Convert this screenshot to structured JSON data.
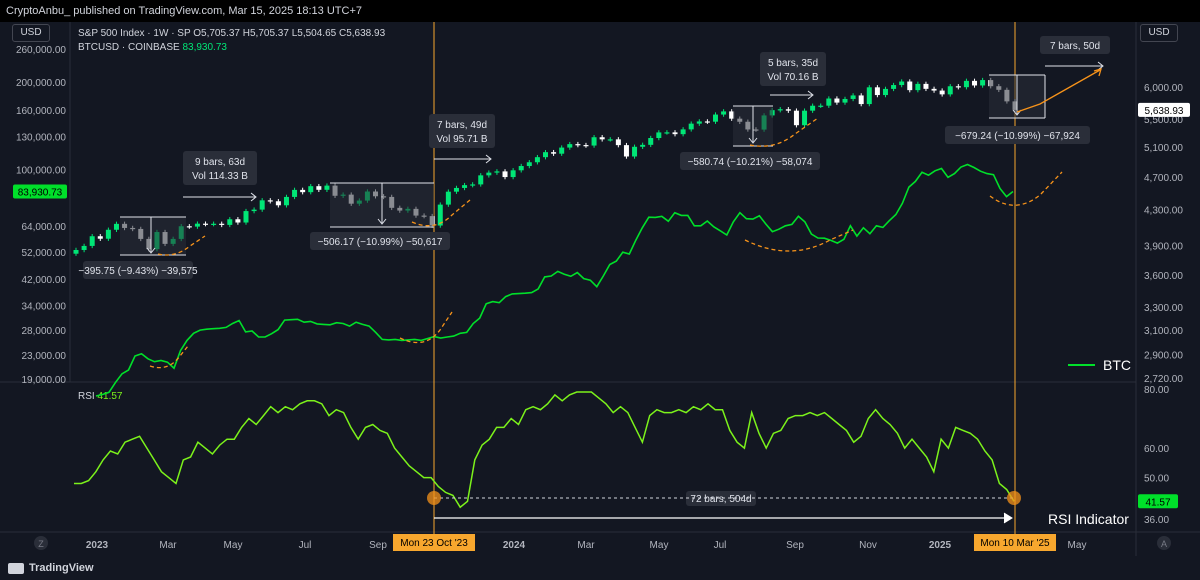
{
  "header": {
    "publish_line": "CryptoAnbu_ published on TradingView.com, Mar 15, 2025 18:13 UTC+7",
    "usd_left": "USD",
    "usd_right": "USD",
    "brand": "TradingView"
  },
  "legend": {
    "spx_name": "S&P 500 Index · 1W · SP",
    "spx_o_label": "O",
    "spx_o": "5,705.37",
    "spx_h_label": "H",
    "spx_h": "5,705.37",
    "spx_l_label": "L",
    "spx_l": "5,504.65",
    "spx_c_label": "C",
    "spx_c": "5,638.93",
    "btc_name": "BTCUSD · COINBASE",
    "btc_value": "83,930.73",
    "rsi_name": "RSI",
    "rsi_value": "41.57"
  },
  "labels": {
    "btc_line_legend": "BTC",
    "rsi_indicator": "RSI Indicator",
    "z_button": "Z",
    "a_button": "A"
  },
  "colors": {
    "background": "#131722",
    "btc_line": "#00e02a",
    "rsi_line": "#7cf21b",
    "up_candle": "#00e676",
    "down_candle": "#ffffff",
    "projection": "#f7931a",
    "marker_line": "#f7a72e",
    "tag_bg": "#f7a72e"
  },
  "chart_data": [
    {
      "type": "line",
      "title": "",
      "x_ticks": [
        "2023",
        "Mar",
        "May",
        "Jul",
        "Sep",
        "2024",
        "Mar",
        "May",
        "Jul",
        "Sep",
        "Nov",
        "2025",
        "May"
      ],
      "x_marker_labels": [
        "Mon 23 Oct '23",
        "Mon 10 Mar '25"
      ],
      "left_axis": {
        "label": "BTCUSD",
        "scale": "log",
        "ticks": [
          260000,
          200000,
          160000,
          130000,
          100000,
          64000,
          52000,
          42000,
          34000,
          28000,
          23000,
          19000
        ],
        "tick_labels": [
          "260,000.00",
          "200,000.00",
          "160,000.00",
          "130,000.00",
          "100,000.00",
          "64,000.00",
          "52,000.00",
          "42,000.00",
          "34,000.00",
          "28,000.00",
          "23,000.00",
          "19,000.00"
        ],
        "current_label": "83,930.73"
      },
      "right_axis": {
        "label": "S&P 500",
        "scale": "log",
        "ticks": [
          6000,
          5500,
          5100,
          4700,
          4300,
          3900,
          3600,
          3300,
          3100,
          2900,
          2720
        ],
        "tick_labels": [
          "6,000.00",
          "5,500.00",
          "5,100.00",
          "4,700.00",
          "4,300.00",
          "3,900.00",
          "3,600.00",
          "3,300.00",
          "3,100.00",
          "2,900.00",
          "2,720.00"
        ],
        "current_label": "5,638.93"
      },
      "series": [
        {
          "name": "BTC",
          "axis": "left",
          "values": [
            16600,
            16800,
            17100,
            18500,
            19800,
            20400,
            22800,
            23200,
            22300,
            21800,
            22000,
            21700,
            20700,
            23800,
            25800,
            27300,
            28000,
            28200,
            28300,
            28400,
            28600,
            29500,
            30200,
            27600,
            27800,
            26500,
            26500,
            27200,
            28100,
            30300,
            30400,
            30500,
            29800,
            30000,
            29400,
            29300,
            29200,
            29700,
            29500,
            28900,
            29800,
            29300,
            28900,
            27500,
            26000,
            25900,
            26000,
            25800,
            25900,
            26000,
            25800,
            26200,
            26600,
            26300,
            26500,
            26700,
            27300,
            27500,
            29500,
            30800,
            34500,
            35100,
            34800,
            36500,
            37300,
            37400,
            37500,
            37700,
            38800,
            42700,
            43000,
            44600,
            43600,
            42900,
            44200,
            42100,
            41600,
            39500,
            43000,
            47100,
            48400,
            51900,
            51200,
            57100,
            63000,
            68500,
            68400,
            69000,
            66400,
            71000,
            69500,
            69500,
            64000,
            64000,
            66500,
            63500,
            61500,
            59500,
            66000,
            71000,
            67700,
            67500,
            69300,
            64900,
            61100,
            62300,
            64000,
            64700,
            69000,
            66000,
            60000,
            58100,
            58000,
            57000,
            55800,
            57500,
            64000,
            59000,
            63000,
            60100,
            64000,
            63200,
            66700,
            70000,
            76500,
            87000,
            91000,
            97800,
            95600,
            99000,
            100800,
            94000,
            96800,
            102000,
            104100,
            101600,
            98700,
            96800,
            96000,
            86000,
            80700,
            84000
          ],
          "note": "weekly closes, approximate"
        },
        {
          "name": "S&P 500 Index · 1W",
          "axis": "right",
          "type": "candlestick",
          "closes": [
            3852,
            3895,
            3999,
            3972,
            4070,
            4136,
            4090,
            4079,
            3970,
            3861,
            4045,
            3917,
            3970,
            4109,
            4105,
            4138,
            4133,
            4137,
            4124,
            4188,
            4151,
            4282,
            4299,
            4409,
            4398,
            4350,
            4450,
            4536,
            4508,
            4582,
            4537,
            4589,
            4464,
            4478,
            4369,
            4406,
            4516,
            4458,
            4450,
            4320,
            4288,
            4308,
            4230,
            4224,
            4117,
            4358,
            4514,
            4560,
            4595,
            4604,
            4719,
            4754,
            4770,
            4697,
            4784,
            4840,
            4890,
            4958,
            5026,
            5005,
            5089,
            5137,
            5124,
            5117,
            5234,
            5204,
            5204,
            5123,
            4967,
            5100,
            5127,
            5223,
            5303,
            5304,
            5278,
            5347,
            5431,
            5464,
            5460,
            5567,
            5615,
            5505,
            5459,
            5346,
            5344,
            5554,
            5634,
            5648,
            5626,
            5408,
            5626,
            5702,
            5703,
            5815,
            5751,
            5808,
            5864,
            5728,
            5995,
            5870,
            5969,
            6032,
            6090,
            5949,
            6051,
            5970,
            5942,
            5881,
            6012,
            5997,
            6101,
            6025,
            6114,
            6013,
            5954,
            5770,
            5638
          ],
          "last": 5638.93
        }
      ],
      "annotations": [
        {
          "kind": "range_box",
          "bars": "9 bars, 63d",
          "vol": "Vol 114.33 B"
        },
        {
          "kind": "drawdown",
          "text": "−395.75 (−9.43%) −39,575"
        },
        {
          "kind": "range_box",
          "bars": "7 bars, 49d",
          "vol": "Vol 95.71 B"
        },
        {
          "kind": "drawdown",
          "text": "−506.17 (−10.99%) −50,617"
        },
        {
          "kind": "range_box",
          "bars": "5 bars, 35d",
          "vol": "Vol 70.16 B"
        },
        {
          "kind": "drawdown",
          "text": "−580.74 (−10.21%) −58,074"
        },
        {
          "kind": "range_box",
          "bars": "7 bars, 50d",
          "vol": ""
        },
        {
          "kind": "drawdown",
          "text": "−679.24 (−10.99%) −67,924"
        }
      ]
    },
    {
      "type": "line",
      "title": "",
      "pane": "RSI",
      "y_ticks": [
        80,
        60,
        50,
        36
      ],
      "y_tick_labels": [
        "80.00",
        "60.00",
        "50.00",
        "36.00"
      ],
      "current_label": "41.57",
      "series": [
        {
          "name": "RSI",
          "values": [
            48,
            48,
            49,
            52,
            56,
            59,
            58,
            62,
            63,
            64,
            60,
            56,
            52,
            50,
            48,
            56,
            57,
            62,
            60,
            58,
            61,
            63,
            63,
            67,
            70,
            68,
            71,
            74,
            72,
            74,
            73,
            75,
            76,
            76,
            75,
            71,
            73,
            72,
            67,
            63,
            67,
            68,
            66,
            65,
            60,
            57,
            54,
            52,
            50,
            50,
            47,
            45,
            44,
            40,
            42,
            56,
            61,
            63,
            67,
            67,
            70,
            68,
            73,
            74,
            73,
            75,
            78,
            76,
            78,
            79,
            79,
            79,
            77,
            75,
            72,
            74,
            72,
            67,
            62,
            71,
            73,
            72,
            72,
            73,
            72,
            74,
            73,
            75,
            73,
            73,
            66,
            62,
            60,
            72,
            65,
            60,
            65,
            66,
            70,
            71,
            71,
            72,
            71,
            72,
            70,
            68,
            66,
            62,
            64,
            70,
            73,
            70,
            68,
            65,
            60,
            63,
            60,
            57,
            52,
            63,
            60,
            67,
            66,
            65,
            63,
            59,
            56,
            48,
            46,
            42
          ]
        }
      ],
      "annotations": [
        {
          "kind": "bar_count",
          "text": "72 bars, 504d"
        }
      ]
    }
  ]
}
